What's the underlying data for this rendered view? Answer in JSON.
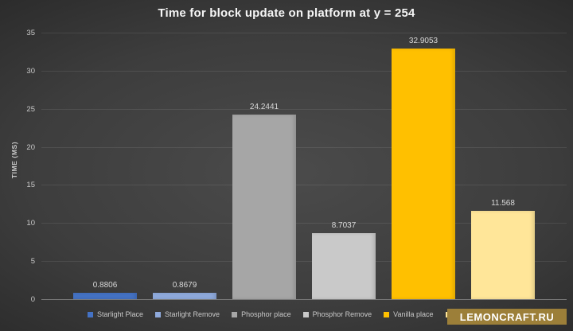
{
  "chart_data": {
    "type": "bar",
    "title": "Time for block update on platform at y = 254",
    "xlabel": "",
    "ylabel": "TIME (MS)",
    "ylim": [
      0,
      35
    ],
    "yticks": [
      0,
      5,
      10,
      15,
      20,
      25,
      30,
      35
    ],
    "grid": true,
    "legend_position": "bottom",
    "series": [
      {
        "name": "Starlight Place",
        "value": 0.8806,
        "data_label": "0.8806",
        "color": "#4472C4",
        "legend_label_visible": true
      },
      {
        "name": "Starlight Remove",
        "value": 0.8679,
        "data_label": "0.8679",
        "color": "#8FAADC",
        "legend_label_visible": true
      },
      {
        "name": "Phosphor place",
        "value": 24.2441,
        "data_label": "24.2441",
        "color": "#A6A6A6",
        "legend_label_visible": true
      },
      {
        "name": "Phosphor Remove",
        "value": 8.7037,
        "data_label": "8.7037",
        "color": "#C9C9C9",
        "legend_label_visible": true
      },
      {
        "name": "Vanilla place",
        "value": 32.9053,
        "data_label": "32.9053",
        "color": "#FFC000",
        "legend_label_visible": true
      },
      {
        "name": "",
        "value": 11.568,
        "data_label": "11.568",
        "color": "#FFE699",
        "legend_label_visible": false
      }
    ]
  },
  "watermark": {
    "text": "LEMONCRAFT.RU",
    "background": "#9C7F39",
    "text_color": "#FFFFFF"
  },
  "colors": {
    "title_text": "#F5F5F5",
    "axis_text": "#C9C9C9",
    "data_label_text": "#D9D9D9",
    "gridline": "rgba(255,255,255,0.09)",
    "axis_line": "#7A7A7A",
    "background_center": "#4B4B4B",
    "background_edge": "#1E1E1E"
  }
}
